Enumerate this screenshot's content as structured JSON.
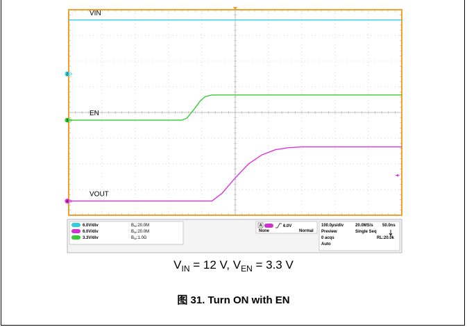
{
  "chart_data": {
    "type": "line",
    "title": "",
    "xlabel": "",
    "ylabel": "",
    "x_divisions": 10,
    "y_divisions": 8,
    "xlim": [
      0,
      10
    ],
    "ylim": [
      0,
      8
    ],
    "grid": true,
    "series": [
      {
        "name": "VIN",
        "color": "#33ccdd",
        "x": [
          0,
          10
        ],
        "y": [
          7.6,
          7.6
        ]
      },
      {
        "name": "EN",
        "color": "#33cc33",
        "x": [
          0,
          3.4,
          3.55,
          3.75,
          3.95,
          4.1,
          4.3,
          10
        ],
        "y": [
          3.7,
          3.7,
          3.78,
          4.1,
          4.45,
          4.62,
          4.68,
          4.68
        ]
      },
      {
        "name": "VOUT",
        "color": "#dd33dd",
        "x": [
          0,
          4.3,
          4.6,
          5.0,
          5.4,
          5.8,
          6.2,
          6.6,
          7.0,
          10
        ],
        "y": [
          0.55,
          0.55,
          0.85,
          1.45,
          2.0,
          2.35,
          2.55,
          2.63,
          2.66,
          2.66
        ]
      }
    ],
    "markers": {
      "vin_channel": "2",
      "en_channel": "3",
      "vout_channel": "4"
    }
  },
  "statusbar": {
    "ch1_scale": "6.0V/div",
    "ch2_scale": "6.0V/div",
    "ch3_scale": "3.3V/div",
    "ch1_bw": "20.0M",
    "ch2_bw": "20.0M",
    "ch3_bw": "1.0G",
    "bw_prefix": "B",
    "bw_sub": "W",
    "trigger_level": "6.0V",
    "trigger_source": "None",
    "trigger_mode": "Normal",
    "timebase": "100.0µs/div",
    "sample_rate": "20.0MS/s",
    "resolution": "50.0ns",
    "acq_mode": "Preview",
    "run_mode": "Single Seq",
    "acqs": "0 acqs",
    "record_length": "RL:20.0k",
    "auto": "Auto",
    "trigger_badge": "A"
  },
  "caption": {
    "v_in_label": "V",
    "v_in_sub": "IN",
    "v_in_value": " = 12 V, ",
    "v_en_label": "V",
    "v_en_sub": "EN",
    "v_en_value": " = 3.3 V",
    "figure_title": "图 31. Turn ON with EN"
  }
}
